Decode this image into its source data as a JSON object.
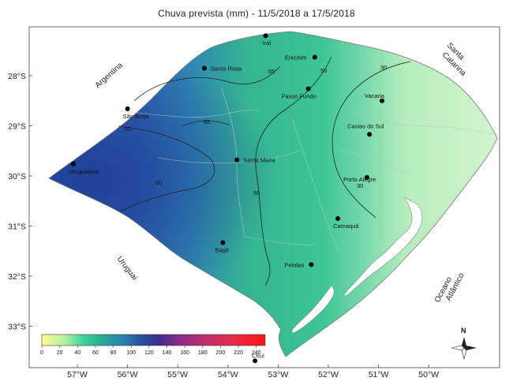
{
  "title": "Chuva prevista (mm) - 11/5/2018 a 17/5/2018",
  "x_ticks": [
    "57°W",
    "56°W",
    "55°W",
    "54°W",
    "53°W",
    "52°W",
    "51°W",
    "50°W"
  ],
  "y_ticks": [
    "28°S",
    "29°S",
    "30°S",
    "31°S",
    "32°S",
    "33°S"
  ],
  "regions": {
    "argentina": "Argentina",
    "santa": "Santa",
    "catarina": "Catarina",
    "uruguai": "Uruguai",
    "oceano": "Oceano",
    "atlantico": "Atlântico"
  },
  "cities": [
    {
      "name": "Iraí",
      "lon": -53.25,
      "lat": -27.2
    },
    {
      "name": "Erechim",
      "lon": -52.27,
      "lat": -27.63
    },
    {
      "name": "Santa Rosa",
      "lon": -54.47,
      "lat": -27.85
    },
    {
      "name": "Passo Fundo",
      "lon": -52.4,
      "lat": -28.26
    },
    {
      "name": "Vacaria",
      "lon": -50.93,
      "lat": -28.5
    },
    {
      "name": "São Borja",
      "lon": -56.0,
      "lat": -28.66
    },
    {
      "name": "Caxias do Sul",
      "lon": -51.18,
      "lat": -29.17
    },
    {
      "name": "Santa Maria",
      "lon": -53.82,
      "lat": -29.68
    },
    {
      "name": "Uruguaiana",
      "lon": -57.08,
      "lat": -29.76
    },
    {
      "name": "Porto Alegre",
      "lon": -51.23,
      "lat": -30.03
    },
    {
      "name": "Camaquã",
      "lon": -51.81,
      "lat": -30.85
    },
    {
      "name": "Bagé",
      "lon": -54.1,
      "lat": -31.33
    },
    {
      "name": "Pelotas",
      "lon": -52.34,
      "lat": -31.77
    },
    {
      "name": "Chuí",
      "lon": -53.46,
      "lat": -33.69
    }
  ],
  "contours": [
    {
      "label": "65"
    },
    {
      "label": "65"
    },
    {
      "label": "60"
    },
    {
      "label": "60"
    },
    {
      "label": "50"
    },
    {
      "label": "50"
    },
    {
      "label": "30"
    },
    {
      "label": "30"
    }
  ],
  "legend": {
    "ticks": [
      "0",
      "20",
      "40",
      "60",
      "80",
      "100",
      "120",
      "140",
      "160",
      "180",
      "200",
      "220",
      "240"
    ],
    "min": 0,
    "max": 250,
    "colors": [
      "#ffff8c",
      "#b7f0a7",
      "#43d69b",
      "#27b08f",
      "#2c7fb0",
      "#2a4a9b",
      "#4a2a8c",
      "#8a2a8a",
      "#c0306b",
      "#e62d4a",
      "#ff1a1a"
    ]
  },
  "north_label": "N",
  "colors": {
    "west": "#2a56a8",
    "center": "#3fbf96",
    "east": "#c8f0c2",
    "water": "#ffffff",
    "lagoon": "#ffffff"
  }
}
